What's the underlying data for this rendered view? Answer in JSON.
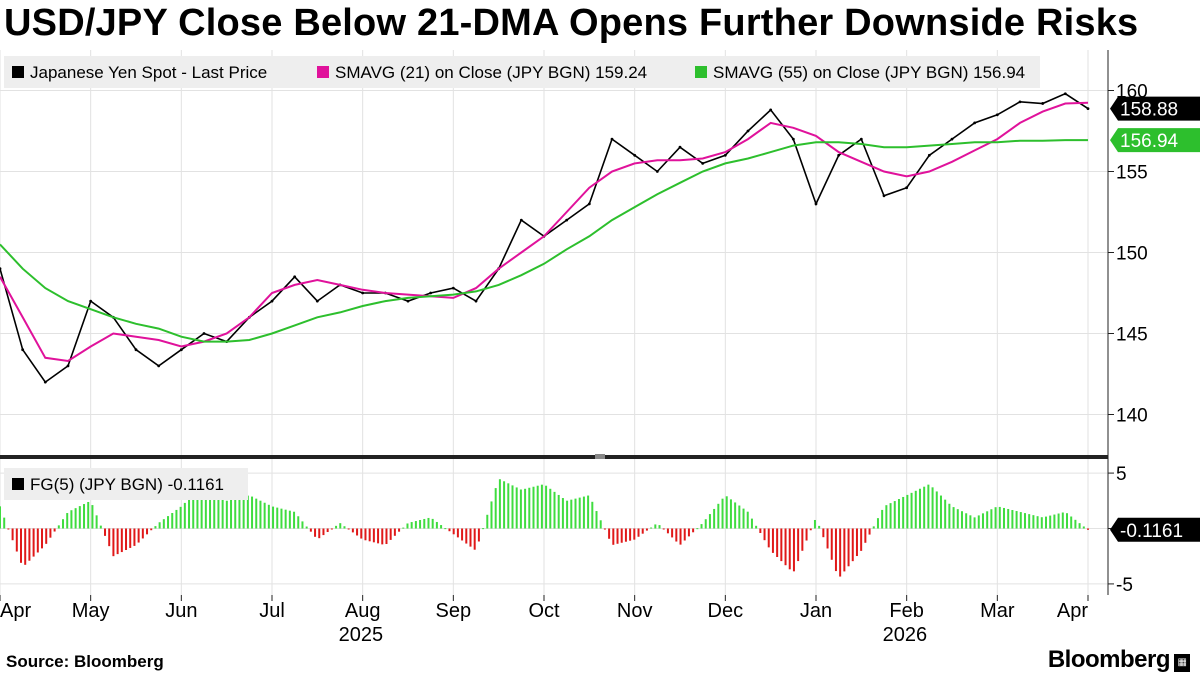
{
  "title": "USD/JPY Close Below 21-DMA Opens Further Downside Risks",
  "source": "Source: Bloomberg",
  "brand": "Bloomberg",
  "colors": {
    "spot": "#000000",
    "sma21": "#e0129b",
    "sma55": "#2dbf2d",
    "fg_pos": "#3fdc3f",
    "fg_neg": "#e01818",
    "label21": "#000000",
    "label55": "#2dbf2d"
  },
  "chart_data": [
    {
      "type": "line",
      "panel": "price",
      "legend": [
        {
          "name": "Japanese Yen Spot - Last Price",
          "color": "#000000"
        },
        {
          "name": "SMAVG (21)  on Close (JPY BGN) 159.24",
          "color": "#e0129b"
        },
        {
          "name": "SMAVG (55)  on Close (JPY BGN) 156.94",
          "color": "#2dbf2d"
        }
      ],
      "ylim": [
        137.5,
        162.5
      ],
      "yticks": [
        140,
        145,
        150,
        155,
        160
      ],
      "last_labels": [
        {
          "text": "158.88",
          "value": 158.88,
          "color": "#000000"
        },
        {
          "text": "156.94",
          "value": 156.94,
          "color": "#2dbf2d"
        }
      ],
      "x_months": [
        "Apr",
        "May",
        "Jun",
        "Jul",
        "Aug",
        "Sep",
        "Oct",
        "Nov",
        "Dec",
        "Jan",
        "Feb",
        "Mar",
        "Apr"
      ],
      "x_years": [
        {
          "label": "2025",
          "month_index": 4
        },
        {
          "label": "2026",
          "month_index": 10
        }
      ],
      "series": [
        {
          "name": "Japanese Yen Spot - Last Price",
          "x": [
            0,
            0.25,
            0.5,
            0.75,
            1,
            1.25,
            1.5,
            1.75,
            2,
            2.25,
            2.5,
            2.75,
            3,
            3.25,
            3.5,
            3.75,
            4,
            4.25,
            4.5,
            4.75,
            5,
            5.25,
            5.5,
            5.75,
            6,
            6.25,
            6.5,
            6.75,
            7,
            7.25,
            7.5,
            7.75,
            8,
            8.25,
            8.5,
            8.75,
            9,
            9.25,
            9.5,
            9.75,
            10,
            10.25,
            10.5,
            10.75,
            11,
            11.25,
            11.5,
            11.75,
            12
          ],
          "values": [
            149,
            144,
            142,
            143,
            147,
            146,
            144,
            143,
            144,
            145,
            144.5,
            146,
            147,
            148.5,
            147,
            148,
            147.5,
            147.5,
            147,
            147.5,
            147.8,
            147,
            149,
            152,
            151,
            152,
            153,
            157,
            156,
            155,
            156.5,
            155.5,
            156,
            157.5,
            158.8,
            157,
            153,
            156,
            157,
            153.5,
            154,
            156,
            157,
            158,
            158.5,
            159.3,
            159.2,
            159.8,
            158.88
          ]
        },
        {
          "name": "SMAVG (21)",
          "x": [
            0,
            0.25,
            0.5,
            0.75,
            1,
            1.25,
            1.5,
            1.75,
            2,
            2.25,
            2.5,
            2.75,
            3,
            3.25,
            3.5,
            3.75,
            4,
            4.25,
            4.5,
            4.75,
            5,
            5.25,
            5.5,
            5.75,
            6,
            6.25,
            6.5,
            6.75,
            7,
            7.25,
            7.5,
            7.75,
            8,
            8.25,
            8.5,
            8.75,
            9,
            9.25,
            9.5,
            9.75,
            10,
            10.25,
            10.5,
            10.75,
            11,
            11.25,
            11.5,
            11.75,
            12
          ],
          "values": [
            148.5,
            146,
            143.5,
            143.3,
            144.2,
            145,
            144.8,
            144.6,
            144.2,
            144.5,
            145,
            146,
            147.5,
            148,
            148.3,
            148,
            147.7,
            147.5,
            147.4,
            147.3,
            147.2,
            147.8,
            149,
            150,
            151,
            152.5,
            154,
            155,
            155.5,
            155.7,
            155.7,
            155.8,
            156.2,
            157,
            158,
            157.7,
            157.2,
            156.2,
            155.6,
            155,
            154.7,
            155,
            155.6,
            156.3,
            157,
            158,
            158.7,
            159.2,
            159.24
          ]
        },
        {
          "name": "SMAVG (55)",
          "x": [
            0,
            0.25,
            0.5,
            0.75,
            1,
            1.25,
            1.5,
            1.75,
            2,
            2.25,
            2.5,
            2.75,
            3,
            3.25,
            3.5,
            3.75,
            4,
            4.25,
            4.5,
            4.75,
            5,
            5.25,
            5.5,
            5.75,
            6,
            6.25,
            6.5,
            6.75,
            7,
            7.25,
            7.5,
            7.75,
            8,
            8.25,
            8.5,
            8.75,
            9,
            9.25,
            9.5,
            9.75,
            10,
            10.25,
            10.5,
            10.75,
            11,
            11.25,
            11.5,
            11.75,
            12
          ],
          "values": [
            150.5,
            149,
            147.8,
            147,
            146.5,
            146,
            145.6,
            145.3,
            144.8,
            144.5,
            144.5,
            144.6,
            145,
            145.5,
            146,
            146.3,
            146.7,
            147,
            147.2,
            147.3,
            147.4,
            147.6,
            148,
            148.6,
            149.3,
            150.2,
            151,
            152,
            152.8,
            153.6,
            154.3,
            155,
            155.5,
            155.8,
            156.2,
            156.6,
            156.8,
            156.8,
            156.7,
            156.5,
            156.5,
            156.6,
            156.7,
            156.8,
            156.8,
            156.9,
            156.9,
            156.94,
            156.94
          ]
        }
      ]
    },
    {
      "type": "bar",
      "panel": "oscillator",
      "legend": [
        {
          "name": "FG(5) (JPY BGN) -0.1161",
          "color": "#000000"
        }
      ],
      "ylim": [
        -6,
        6
      ],
      "yticks": [
        -5,
        0,
        5
      ],
      "ytick_labels": [
        "-5",
        "",
        "5"
      ],
      "last_label": {
        "text": "-0.1161",
        "value": -0.1161
      },
      "series": [
        {
          "name": "FG(5)",
          "x": [
            0,
            0.25,
            0.5,
            0.75,
            1,
            1.25,
            1.5,
            1.75,
            2,
            2.25,
            2.5,
            2.75,
            3,
            3.25,
            3.5,
            3.75,
            4,
            4.25,
            4.5,
            4.75,
            5,
            5.25,
            5.5,
            5.75,
            6,
            6.25,
            6.5,
            6.75,
            7,
            7.25,
            7.5,
            7.75,
            8,
            8.25,
            8.5,
            8.75,
            9,
            9.25,
            9.5,
            9.75,
            10,
            10.25,
            10.5,
            10.75,
            11,
            11.25,
            11.5,
            11.75,
            12
          ],
          "values": [
            2,
            -3.5,
            -1.5,
            1.5,
            2.5,
            -2.5,
            -1.5,
            0.5,
            2,
            4,
            2.5,
            3,
            2,
            1.5,
            -1,
            0.5,
            -1,
            -1.5,
            0.5,
            1,
            -0.5,
            -2,
            4.5,
            3.5,
            4,
            2.5,
            3,
            -1.5,
            -1,
            0.5,
            -1.5,
            0.5,
            3,
            1.5,
            -2,
            -4,
            1,
            -4.5,
            -2,
            2,
            3,
            4,
            2,
            1,
            2,
            1.5,
            1,
            1.5,
            -0.1161
          ]
        }
      ]
    }
  ]
}
